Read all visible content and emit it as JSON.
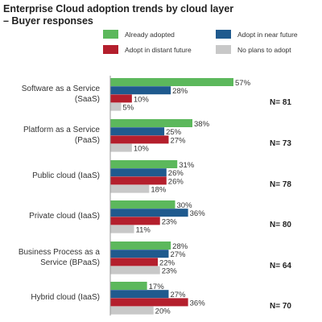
{
  "chart_data": {
    "type": "bar",
    "orientation": "horizontal",
    "title": "Enterprise Cloud adoption trends by cloud layer",
    "subtitle": "– Buyer responses",
    "categories": [
      [
        "Software as a Service",
        "(SaaS)"
      ],
      [
        "Platform as a Service",
        "(PaaS)"
      ],
      [
        "Public cloud (IaaS)"
      ],
      [
        "Private cloud (IaaS)"
      ],
      [
        "Business Process as a",
        "Service (BPaaS)"
      ],
      [
        "Hybrid cloud (IaaS)"
      ]
    ],
    "n_labels": [
      "N= 81",
      "N= 73",
      "N= 78",
      "N= 80",
      "N= 64",
      "N= 70"
    ],
    "value_suffix": "%",
    "series": [
      {
        "name": "Already adopted",
        "color": "#5cb85c",
        "values": [
          57,
          38,
          31,
          30,
          28,
          17
        ]
      },
      {
        "name": "Adopt in near future",
        "color": "#1f5a8e",
        "values": [
          28,
          25,
          26,
          36,
          27,
          27
        ]
      },
      {
        "name": "Adopt in distant future",
        "color": "#b41f2d",
        "values": [
          10,
          27,
          26,
          23,
          22,
          36
        ]
      },
      {
        "name": "No plans to adopt",
        "color": "#c8c8c8",
        "values": [
          5,
          10,
          18,
          11,
          23,
          20
        ]
      }
    ],
    "xlim": [
      0,
      57
    ],
    "legend_position": "top-right",
    "grid": false
  }
}
